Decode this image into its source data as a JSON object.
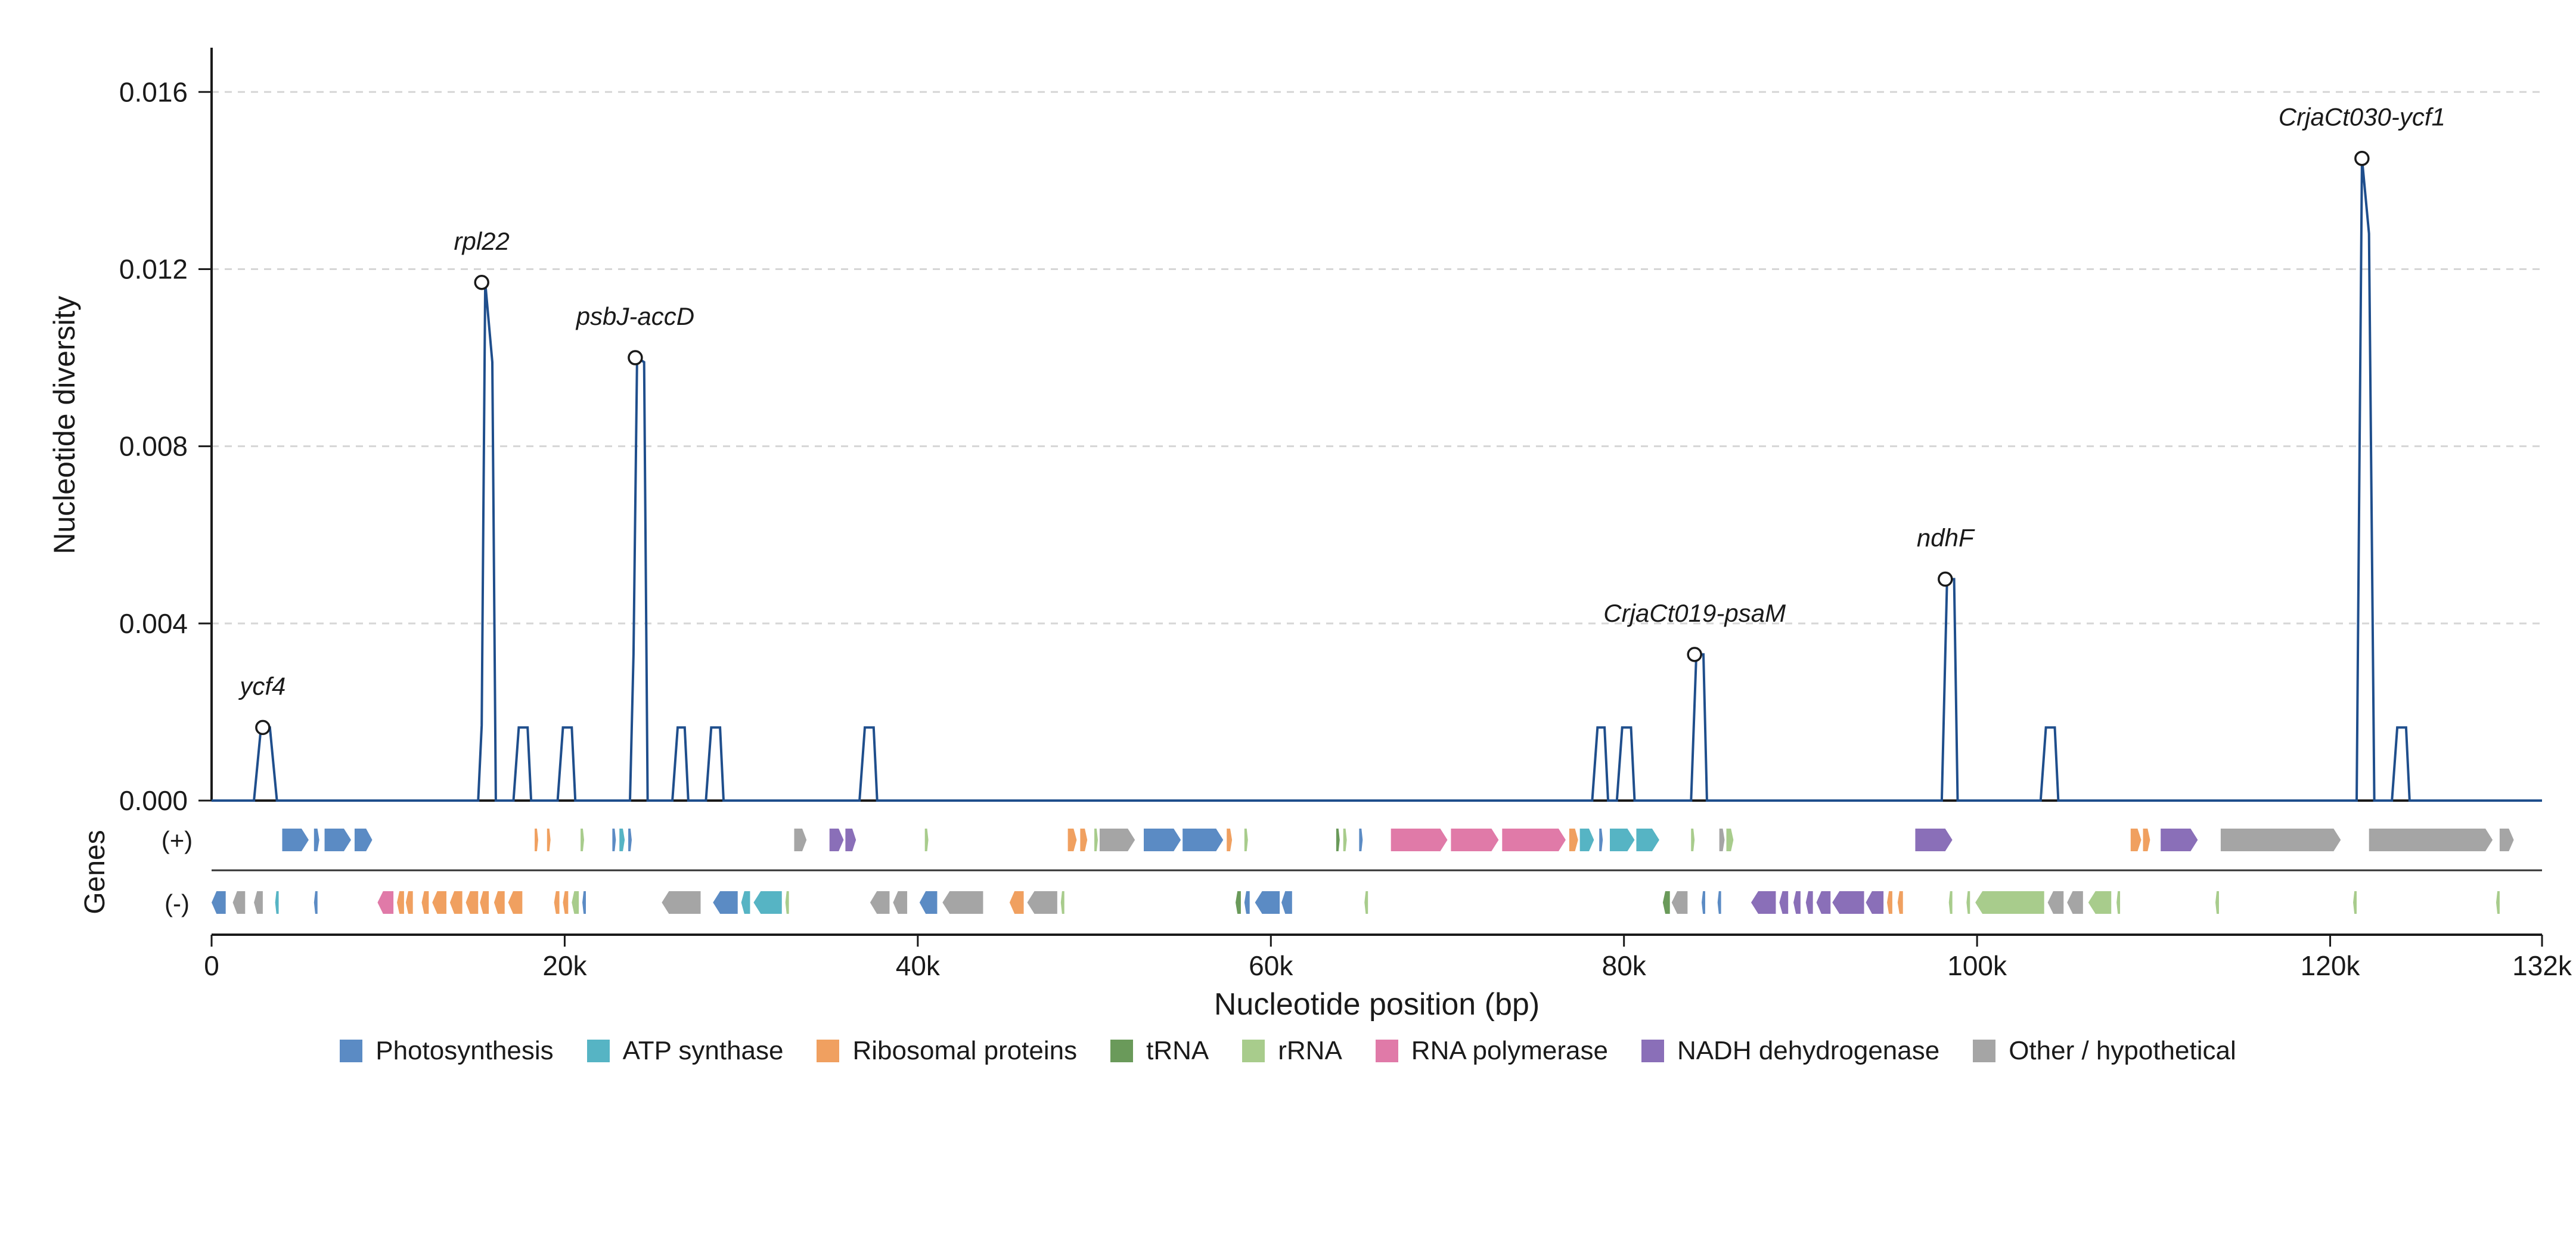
{
  "chart_data": {
    "type": "line",
    "title": "",
    "xlabel": "Nucleotide position (bp)",
    "ylabel": "Nucleotide diversity",
    "track_label": "Genes",
    "strand_labels": {
      "plus": "(+)",
      "minus": "(-)"
    },
    "xlim": [
      0,
      132000
    ],
    "ylim": [
      0,
      0.017
    ],
    "x_ticks": [
      0,
      20000,
      40000,
      60000,
      80000,
      100000,
      120000,
      132000
    ],
    "x_tick_labels": [
      "0",
      "20k",
      "40k",
      "60k",
      "80k",
      "100k",
      "120k",
      "132k"
    ],
    "y_ticks": [
      0.0,
      0.004,
      0.008,
      0.012,
      0.016
    ],
    "y_tick_labels": [
      "0.000",
      "0.004",
      "0.008",
      "0.012",
      "0.016"
    ],
    "grid": "horizontal-dashed",
    "line_color": "#1f4e8c",
    "series": [
      {
        "x": [
          0,
          2400,
          2800,
          3300,
          3700,
          15100,
          15300,
          15500,
          15900,
          16100,
          17100,
          17400,
          17900,
          18100,
          19600,
          19900,
          20400,
          20600,
          23700,
          23900,
          24100,
          24500,
          24700,
          26100,
          26400,
          26800,
          27000,
          28000,
          28300,
          28800,
          29000,
          36700,
          37000,
          37500,
          37700,
          78200,
          78500,
          78900,
          79100,
          79600,
          79900,
          80400,
          80600,
          83800,
          84100,
          84500,
          84700,
          98000,
          98300,
          98700,
          98900,
          103600,
          103900,
          104400,
          104600,
          121500,
          121800,
          122200,
          122500,
          123500,
          123800,
          124300,
          124500,
          132000
        ],
        "y": [
          0,
          0,
          0.00165,
          0.00165,
          0,
          0,
          0.0017,
          0.0117,
          0.0099,
          0,
          0,
          0.00165,
          0.00165,
          0,
          0,
          0.00165,
          0.00165,
          0,
          0,
          0.0033,
          0.01,
          0.0099,
          0,
          0,
          0.00165,
          0.00165,
          0,
          0,
          0.00165,
          0.00165,
          0,
          0,
          0.00165,
          0.00165,
          0,
          0,
          0.00165,
          0.00165,
          0,
          0,
          0.00165,
          0.00165,
          0,
          0,
          0.0033,
          0.0033,
          0,
          0,
          0.005,
          0.005,
          0,
          0,
          0.00165,
          0.00165,
          0,
          0,
          0.0145,
          0.0128,
          0,
          0,
          0.00165,
          0.00165,
          0,
          0
        ]
      }
    ],
    "peaks": [
      {
        "x": 2900,
        "y": 0.00165,
        "label": "ycf4"
      },
      {
        "x": 15300,
        "y": 0.0117,
        "label": "rpl22"
      },
      {
        "x": 24000,
        "y": 0.01,
        "label": "psbJ-accD"
      },
      {
        "x": 84000,
        "y": 0.0033,
        "label": "CrjaCt019-psaM"
      },
      {
        "x": 98200,
        "y": 0.005,
        "label": "ndhF"
      },
      {
        "x": 121800,
        "y": 0.0145,
        "label": "CrjaCt030-ycf1"
      }
    ],
    "legend_placement": "bottom-center",
    "legend": [
      {
        "name": "Photosynthesis",
        "color": "#5b8bc4"
      },
      {
        "name": "ATP synthase",
        "color": "#56b4c4"
      },
      {
        "name": "Ribosomal proteins",
        "color": "#f0a060"
      },
      {
        "name": "tRNA",
        "color": "#6a9a5a"
      },
      {
        "name": "rRNA",
        "color": "#a8cc8c"
      },
      {
        "name": "RNA polymerase",
        "color": "#e07aa8"
      },
      {
        "name": "NADH dehydrogenase",
        "color": "#8a6fb8"
      },
      {
        "name": "Other / hypothetical",
        "color": "#a5a5a5"
      }
    ],
    "genes_plus": [
      [
        4000,
        5500,
        0
      ],
      [
        5800,
        6100,
        0
      ],
      [
        6400,
        7900,
        0
      ],
      [
        8100,
        9100,
        0
      ],
      [
        18300,
        18500,
        2
      ],
      [
        19000,
        19200,
        2
      ],
      [
        20900,
        21100,
        4
      ],
      [
        22700,
        22900,
        0
      ],
      [
        23100,
        23400,
        1
      ],
      [
        23600,
        23800,
        0
      ],
      [
        33000,
        33700,
        7
      ],
      [
        35000,
        35800,
        6
      ],
      [
        35900,
        36500,
        6
      ],
      [
        40400,
        40600,
        4
      ],
      [
        48500,
        49000,
        2
      ],
      [
        49200,
        49600,
        2
      ],
      [
        50000,
        50200,
        4
      ],
      [
        50300,
        52300,
        7
      ],
      [
        52800,
        54900,
        0
      ],
      [
        55000,
        57300,
        0
      ],
      [
        57500,
        57800,
        2
      ],
      [
        58500,
        58700,
        4
      ],
      [
        63700,
        63900,
        3
      ],
      [
        64100,
        64300,
        4
      ],
      [
        65000,
        65200,
        0
      ],
      [
        66800,
        70000,
        5
      ],
      [
        70200,
        72900,
        5
      ],
      [
        73100,
        76700,
        5
      ],
      [
        76900,
        77400,
        2
      ],
      [
        77500,
        78300,
        1
      ],
      [
        78600,
        78800,
        0
      ],
      [
        79200,
        80600,
        1
      ],
      [
        80700,
        82000,
        1
      ],
      [
        83800,
        84000,
        4
      ],
      [
        85400,
        85700,
        7
      ],
      [
        85800,
        86200,
        4
      ],
      [
        96500,
        98600,
        6
      ],
      [
        108700,
        109300,
        2
      ],
      [
        109400,
        109800,
        2
      ],
      [
        110400,
        112500,
        6
      ],
      [
        113800,
        120600,
        7
      ],
      [
        122200,
        129200,
        7
      ],
      [
        129600,
        130400,
        7
      ]
    ],
    "genes_minus": [
      [
        0,
        800,
        0
      ],
      [
        1200,
        1900,
        7
      ],
      [
        2400,
        2900,
        7
      ],
      [
        3600,
        3800,
        1
      ],
      [
        5800,
        6000,
        0
      ],
      [
        9400,
        10300,
        5
      ],
      [
        10500,
        10900,
        2
      ],
      [
        11000,
        11400,
        2
      ],
      [
        11900,
        12300,
        2
      ],
      [
        12500,
        13300,
        2
      ],
      [
        13500,
        14200,
        2
      ],
      [
        14400,
        15100,
        2
      ],
      [
        15200,
        15700,
        2
      ],
      [
        16000,
        16600,
        2
      ],
      [
        16800,
        17600,
        2
      ],
      [
        19400,
        19700,
        2
      ],
      [
        19900,
        20200,
        2
      ],
      [
        20400,
        20800,
        4
      ],
      [
        21000,
        21200,
        0
      ],
      [
        25500,
        27700,
        7
      ],
      [
        28400,
        29800,
        0
      ],
      [
        30000,
        30500,
        1
      ],
      [
        30700,
        32300,
        1
      ],
      [
        32500,
        32700,
        4
      ],
      [
        37300,
        38400,
        7
      ],
      [
        38600,
        39400,
        7
      ],
      [
        40100,
        41100,
        0
      ],
      [
        41400,
        43700,
        7
      ],
      [
        45200,
        46000,
        2
      ],
      [
        46200,
        47900,
        7
      ],
      [
        48100,
        48300,
        4
      ],
      [
        58000,
        58300,
        3
      ],
      [
        58500,
        58800,
        0
      ],
      [
        59100,
        60500,
        0
      ],
      [
        60600,
        61200,
        0
      ],
      [
        65300,
        65500,
        4
      ],
      [
        82200,
        82600,
        3
      ],
      [
        82700,
        83600,
        7
      ],
      [
        84400,
        84600,
        0
      ],
      [
        85300,
        85500,
        0
      ],
      [
        87200,
        88600,
        6
      ],
      [
        88800,
        89300,
        6
      ],
      [
        89600,
        90000,
        6
      ],
      [
        90300,
        90700,
        6
      ],
      [
        90900,
        91700,
        6
      ],
      [
        91800,
        93600,
        6
      ],
      [
        93700,
        94700,
        6
      ],
      [
        94900,
        95200,
        2
      ],
      [
        95500,
        95800,
        2
      ],
      [
        98400,
        98600,
        4
      ],
      [
        99400,
        99600,
        4
      ],
      [
        99900,
        103800,
        4
      ],
      [
        104000,
        104900,
        7
      ],
      [
        105100,
        106000,
        7
      ],
      [
        106300,
        107600,
        4
      ],
      [
        107900,
        108100,
        4
      ],
      [
        113500,
        113700,
        4
      ],
      [
        121300,
        121500,
        4
      ],
      [
        129400,
        129600,
        4
      ]
    ]
  }
}
